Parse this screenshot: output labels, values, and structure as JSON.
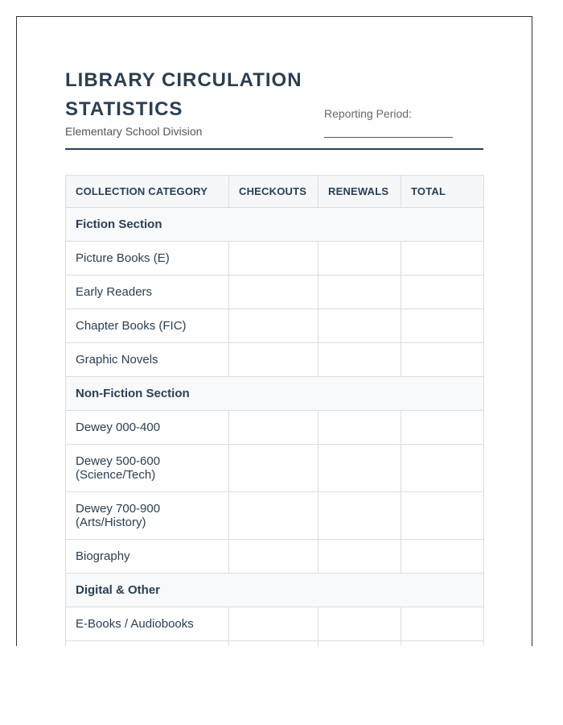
{
  "header": {
    "title": "LIBRARY CIRCULATION STATISTICS",
    "subtitle": "Elementary School Division",
    "reporting_period_label": "Reporting Period:",
    "reporting_period_value": ""
  },
  "table": {
    "columns": [
      "COLLECTION CATEGORY",
      "CHECKOUTS",
      "RENEWALS",
      "TOTAL"
    ],
    "sections": [
      {
        "label": "Fiction Section",
        "rows": [
          "Picture Books (E)",
          "Early Readers",
          "Chapter Books (FIC)",
          "Graphic Novels"
        ]
      },
      {
        "label": "Non-Fiction Section",
        "rows": [
          "Dewey 000-400",
          "Dewey 500-600 (Science/Tech)",
          "Dewey 700-900 (Arts/History)",
          "Biography"
        ]
      },
      {
        "label": "Digital & Other",
        "rows": [
          "E-Books / Audiobooks"
        ]
      }
    ]
  },
  "colors": {
    "primary": "#2c3e50",
    "header_bg": "#f5f7f9",
    "border": "#dddddd"
  }
}
